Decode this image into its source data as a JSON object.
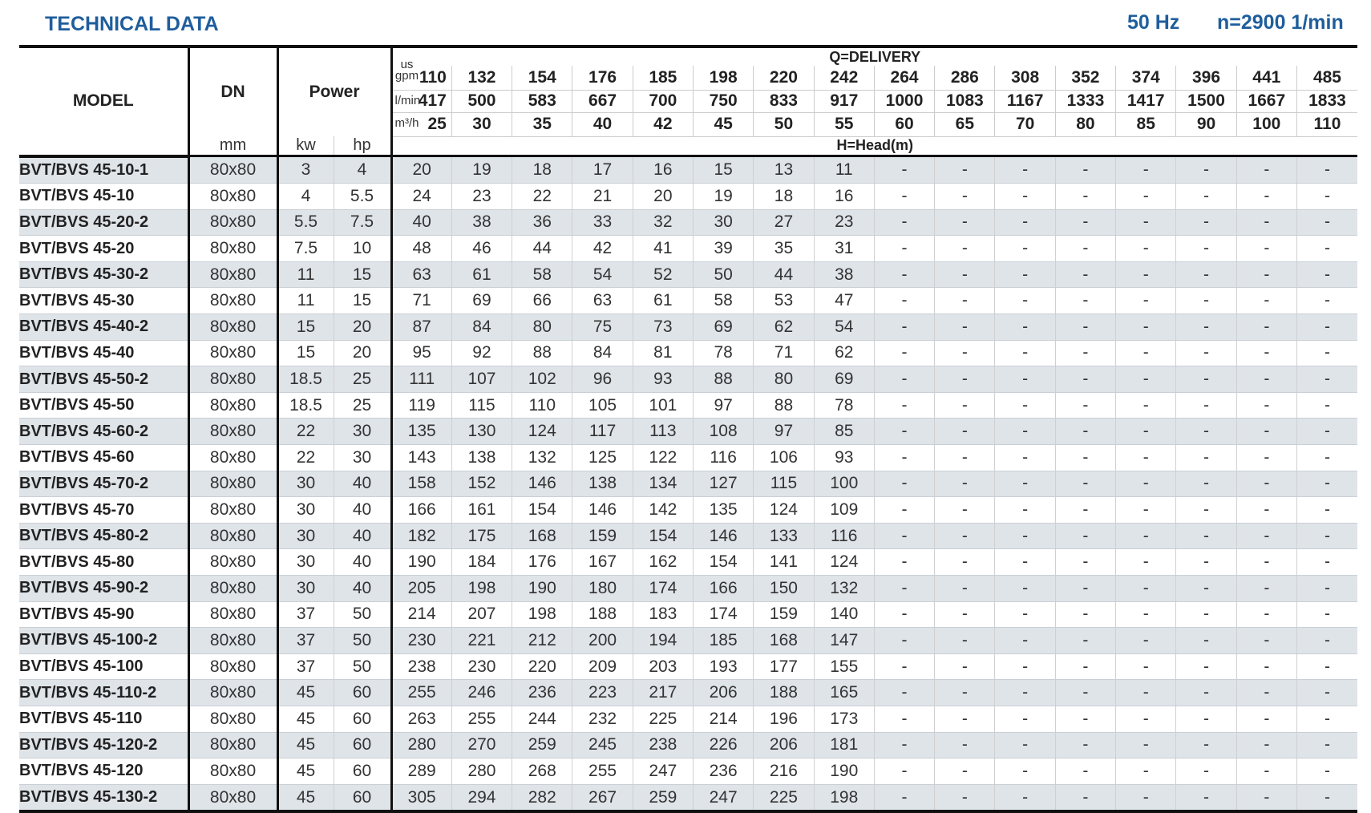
{
  "header": {
    "title": "TECHNICAL DATA",
    "frequency": "50 Hz",
    "speed": "n=2900 1/min"
  },
  "columns": {
    "model": "MODEL",
    "dn": "DN",
    "dn_unit": "mm",
    "power": "Power",
    "kw": "kw",
    "hp": "hp",
    "delivery": "Q=DELIVERY",
    "head": "H=Head(m)",
    "gpm_label": "us gpm",
    "lmin_label": "l/min",
    "m3h_label": "m³/h",
    "gpm": [
      "110",
      "132",
      "154",
      "176",
      "185",
      "198",
      "220",
      "242",
      "264",
      "286",
      "308",
      "352",
      "374",
      "396",
      "441",
      "485"
    ],
    "lmin": [
      "417",
      "500",
      "583",
      "667",
      "700",
      "750",
      "833",
      "917",
      "1000",
      "1083",
      "1167",
      "1333",
      "1417",
      "1500",
      "1667",
      "1833"
    ],
    "m3h": [
      "25",
      "30",
      "35",
      "40",
      "42",
      "45",
      "50",
      "55",
      "60",
      "65",
      "70",
      "80",
      "85",
      "90",
      "100",
      "110"
    ]
  },
  "rows": [
    {
      "model": "BVT/BVS 45-10-1",
      "dn": "80x80",
      "kw": "3",
      "hp": "4",
      "h": [
        "20",
        "19",
        "18",
        "17",
        "16",
        "15",
        "13",
        "11"
      ]
    },
    {
      "model": "BVT/BVS 45-10",
      "dn": "80x80",
      "kw": "4",
      "hp": "5.5",
      "h": [
        "24",
        "23",
        "22",
        "21",
        "20",
        "19",
        "18",
        "16"
      ]
    },
    {
      "model": "BVT/BVS 45-20-2",
      "dn": "80x80",
      "kw": "5.5",
      "hp": "7.5",
      "h": [
        "40",
        "38",
        "36",
        "33",
        "32",
        "30",
        "27",
        "23"
      ]
    },
    {
      "model": "BVT/BVS 45-20",
      "dn": "80x80",
      "kw": "7.5",
      "hp": "10",
      "h": [
        "48",
        "46",
        "44",
        "42",
        "41",
        "39",
        "35",
        "31"
      ]
    },
    {
      "model": "BVT/BVS 45-30-2",
      "dn": "80x80",
      "kw": "11",
      "hp": "15",
      "h": [
        "63",
        "61",
        "58",
        "54",
        "52",
        "50",
        "44",
        "38"
      ]
    },
    {
      "model": "BVT/BVS 45-30",
      "dn": "80x80",
      "kw": "11",
      "hp": "15",
      "h": [
        "71",
        "69",
        "66",
        "63",
        "61",
        "58",
        "53",
        "47"
      ]
    },
    {
      "model": "BVT/BVS 45-40-2",
      "dn": "80x80",
      "kw": "15",
      "hp": "20",
      "h": [
        "87",
        "84",
        "80",
        "75",
        "73",
        "69",
        "62",
        "54"
      ]
    },
    {
      "model": "BVT/BVS 45-40",
      "dn": "80x80",
      "kw": "15",
      "hp": "20",
      "h": [
        "95",
        "92",
        "88",
        "84",
        "81",
        "78",
        "71",
        "62"
      ]
    },
    {
      "model": "BVT/BVS 45-50-2",
      "dn": "80x80",
      "kw": "18.5",
      "hp": "25",
      "h": [
        "111",
        "107",
        "102",
        "96",
        "93",
        "88",
        "80",
        "69"
      ]
    },
    {
      "model": "BVT/BVS 45-50",
      "dn": "80x80",
      "kw": "18.5",
      "hp": "25",
      "h": [
        "119",
        "115",
        "110",
        "105",
        "101",
        "97",
        "88",
        "78"
      ]
    },
    {
      "model": "BVT/BVS 45-60-2",
      "dn": "80x80",
      "kw": "22",
      "hp": "30",
      "h": [
        "135",
        "130",
        "124",
        "117",
        "113",
        "108",
        "97",
        "85"
      ]
    },
    {
      "model": "BVT/BVS 45-60",
      "dn": "80x80",
      "kw": "22",
      "hp": "30",
      "h": [
        "143",
        "138",
        "132",
        "125",
        "122",
        "116",
        "106",
        "93"
      ]
    },
    {
      "model": "BVT/BVS 45-70-2",
      "dn": "80x80",
      "kw": "30",
      "hp": "40",
      "h": [
        "158",
        "152",
        "146",
        "138",
        "134",
        "127",
        "115",
        "100"
      ]
    },
    {
      "model": "BVT/BVS 45-70",
      "dn": "80x80",
      "kw": "30",
      "hp": "40",
      "h": [
        "166",
        "161",
        "154",
        "146",
        "142",
        "135",
        "124",
        "109"
      ]
    },
    {
      "model": "BVT/BVS 45-80-2",
      "dn": "80x80",
      "kw": "30",
      "hp": "40",
      "h": [
        "182",
        "175",
        "168",
        "159",
        "154",
        "146",
        "133",
        "116"
      ]
    },
    {
      "model": "BVT/BVS 45-80",
      "dn": "80x80",
      "kw": "30",
      "hp": "40",
      "h": [
        "190",
        "184",
        "176",
        "167",
        "162",
        "154",
        "141",
        "124"
      ]
    },
    {
      "model": "BVT/BVS 45-90-2",
      "dn": "80x80",
      "kw": "30",
      "hp": "40",
      "h": [
        "205",
        "198",
        "190",
        "180",
        "174",
        "166",
        "150",
        "132"
      ]
    },
    {
      "model": "BVT/BVS 45-90",
      "dn": "80x80",
      "kw": "37",
      "hp": "50",
      "h": [
        "214",
        "207",
        "198",
        "188",
        "183",
        "174",
        "159",
        "140"
      ]
    },
    {
      "model": "BVT/BVS 45-100-2",
      "dn": "80x80",
      "kw": "37",
      "hp": "50",
      "h": [
        "230",
        "221",
        "212",
        "200",
        "194",
        "185",
        "168",
        "147"
      ]
    },
    {
      "model": "BVT/BVS 45-100",
      "dn": "80x80",
      "kw": "37",
      "hp": "50",
      "h": [
        "238",
        "230",
        "220",
        "209",
        "203",
        "193",
        "177",
        "155"
      ]
    },
    {
      "model": "BVT/BVS 45-110-2",
      "dn": "80x80",
      "kw": "45",
      "hp": "60",
      "h": [
        "255",
        "246",
        "236",
        "223",
        "217",
        "206",
        "188",
        "165"
      ]
    },
    {
      "model": "BVT/BVS 45-110",
      "dn": "80x80",
      "kw": "45",
      "hp": "60",
      "h": [
        "263",
        "255",
        "244",
        "232",
        "225",
        "214",
        "196",
        "173"
      ]
    },
    {
      "model": "BVT/BVS 45-120-2",
      "dn": "80x80",
      "kw": "45",
      "hp": "60",
      "h": [
        "280",
        "270",
        "259",
        "245",
        "238",
        "226",
        "206",
        "181"
      ]
    },
    {
      "model": "BVT/BVS 45-120",
      "dn": "80x80",
      "kw": "45",
      "hp": "60",
      "h": [
        "289",
        "280",
        "268",
        "255",
        "247",
        "236",
        "216",
        "190"
      ]
    },
    {
      "model": "BVT/BVS 45-130-2",
      "dn": "80x80",
      "kw": "45",
      "hp": "60",
      "h": [
        "305",
        "294",
        "282",
        "267",
        "259",
        "247",
        "225",
        "198"
      ]
    }
  ],
  "empty_value": "-",
  "colors": {
    "title": "#1f5e9c",
    "row_shade": "#dfe4e9"
  }
}
